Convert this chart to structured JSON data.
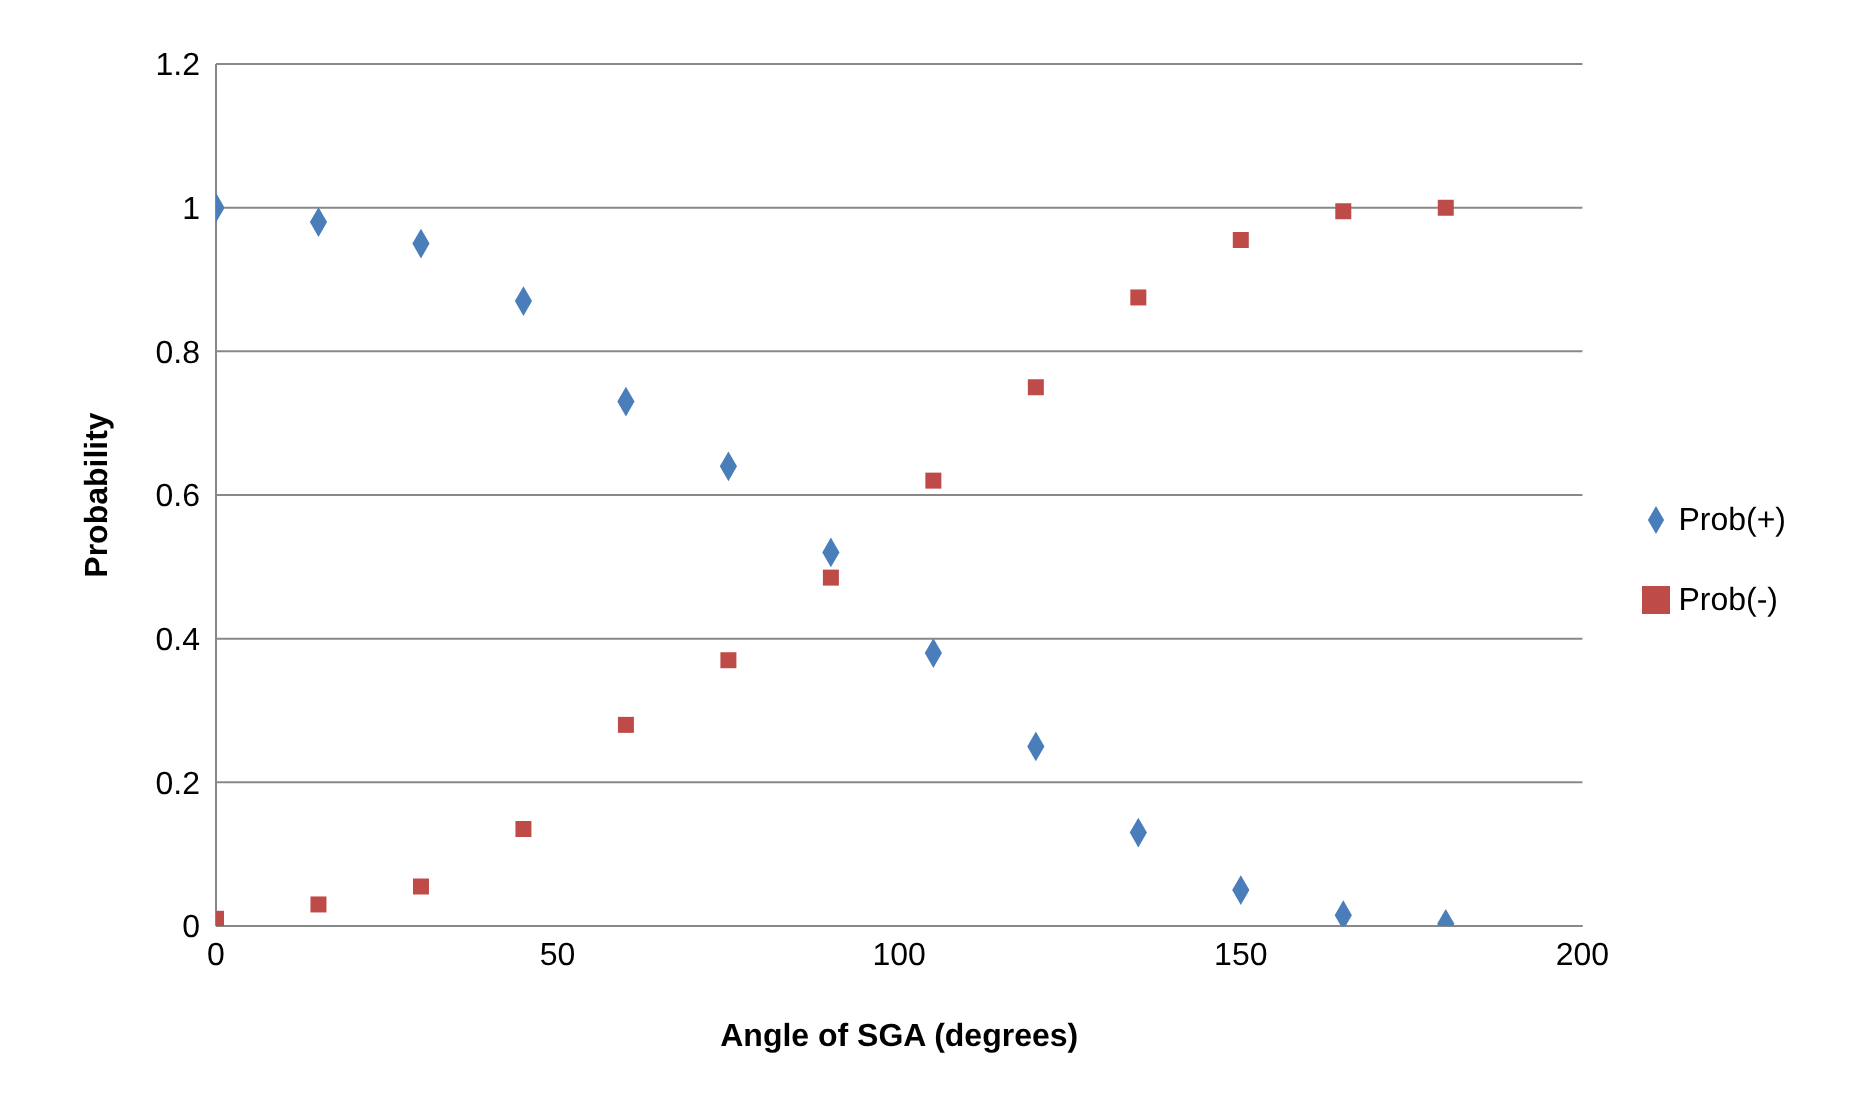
{
  "chart_data": {
    "type": "scatter",
    "xlabel": "Angle of SGA (degrees)",
    "ylabel": "Probability",
    "x": [
      0,
      15,
      30,
      45,
      60,
      75,
      90,
      105,
      120,
      135,
      150,
      165,
      180
    ],
    "series": [
      {
        "name": "Prob(+)",
        "color": "#4a7ebb",
        "marker": "diamond",
        "values": [
          1.0,
          0.98,
          0.95,
          0.87,
          0.73,
          0.64,
          0.52,
          0.38,
          0.25,
          0.13,
          0.05,
          0.015,
          0.003
        ]
      },
      {
        "name": "Prob(-)",
        "color": "#be4b48",
        "marker": "square",
        "values": [
          0.01,
          0.03,
          0.055,
          0.135,
          0.28,
          0.37,
          0.485,
          0.62,
          0.75,
          0.875,
          0.955,
          0.995,
          1.0
        ]
      }
    ],
    "xlim": [
      0,
      200
    ],
    "xticks": [
      0,
      50,
      100,
      150,
      200
    ],
    "ylim": [
      0,
      1.2
    ],
    "yticks": [
      0,
      0.2,
      0.4,
      0.6,
      0.8,
      1,
      1.2
    ],
    "grid": "y",
    "legend": "right"
  }
}
